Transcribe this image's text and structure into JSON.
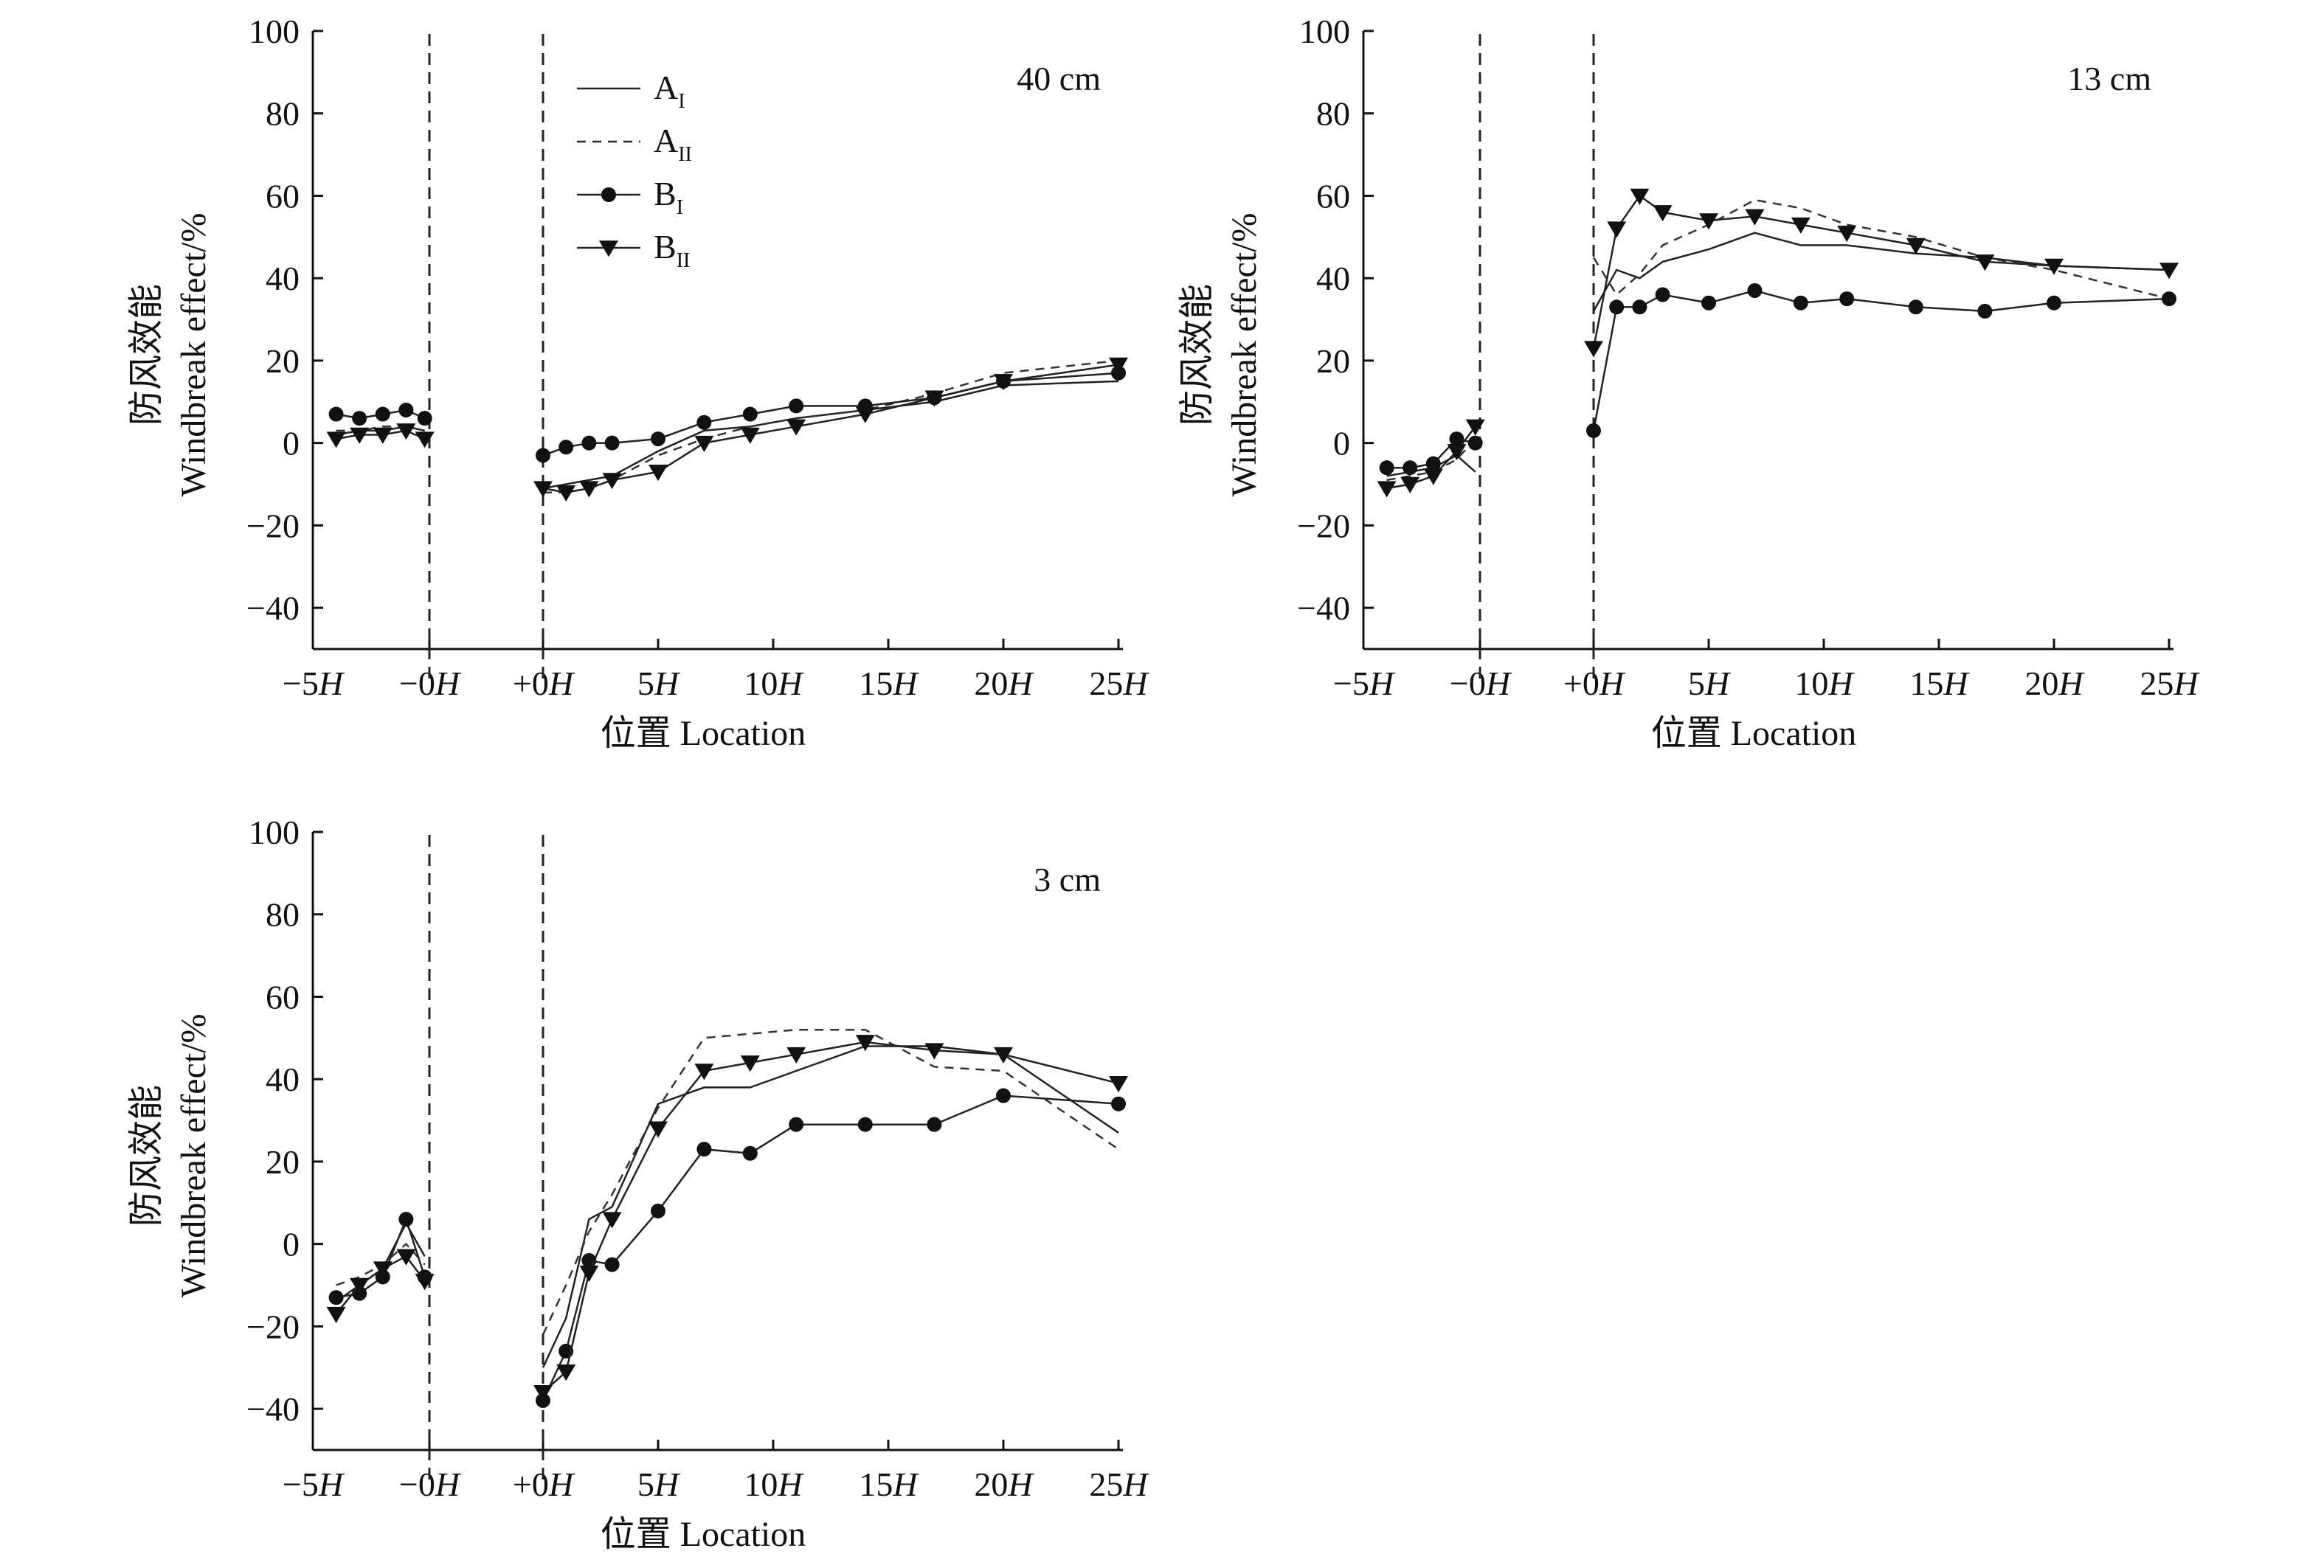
{
  "chart_data": [
    {
      "type": "line",
      "title": "40 cm",
      "xlabel": "位置 Location",
      "ylabel_cn": "防风效能",
      "ylabel_en": "Windbreak effect/%",
      "xticks": [
        "−5",
        "−0",
        "+0",
        "5",
        "10",
        "15",
        "20",
        "25"
      ],
      "xtick_suffix": "H",
      "ylim": [
        -50,
        100
      ],
      "yticks": [
        "100",
        "80",
        "60",
        "40",
        "20",
        "0",
        "−20",
        "−40"
      ],
      "legend": {
        "entries": [
          {
            "base": "A",
            "sub": "I"
          },
          {
            "base": "A",
            "sub": "II"
          },
          {
            "base": "B",
            "sub": "I"
          },
          {
            "base": "B",
            "sub": "II"
          }
        ]
      },
      "series": [
        {
          "name": "AI",
          "style": "solid",
          "marker": "none",
          "windward": {
            "x": [
              -4,
              -3,
              -2,
              -1,
              -0.2
            ],
            "y": [
              2,
              3,
              3,
              4,
              3
            ]
          },
          "leeward": {
            "x": [
              0,
              1,
              2,
              3,
              5,
              7,
              9,
              11,
              14,
              17,
              20,
              25
            ],
            "y": [
              -11,
              -10,
              -9,
              -8,
              -2,
              3,
              4,
              6,
              8,
              10,
              14,
              15
            ]
          }
        },
        {
          "name": "AII",
          "style": "dashed",
          "marker": "none",
          "windward": {
            "x": [
              -4,
              -3,
              -2,
              -1,
              -0.2
            ],
            "y": [
              3,
              3,
              4,
              4,
              3
            ]
          },
          "leeward": {
            "x": [
              0,
              1,
              2,
              3,
              5,
              7,
              9,
              11,
              14,
              17,
              20,
              25
            ],
            "y": [
              -12,
              -12,
              -11,
              -9,
              -3,
              1,
              4,
              6,
              8,
              12,
              17,
              20
            ]
          }
        },
        {
          "name": "BI",
          "style": "solid",
          "marker": "circle",
          "windward": {
            "x": [
              -4,
              -3,
              -2,
              -1,
              -0.2
            ],
            "y": [
              7,
              6,
              7,
              8,
              6
            ]
          },
          "leeward": {
            "x": [
              0,
              1,
              2,
              3,
              5,
              7,
              9,
              11,
              14,
              17,
              20,
              25
            ],
            "y": [
              -3,
              -1,
              0,
              0,
              1,
              5,
              7,
              9,
              9,
              11,
              15,
              17
            ]
          }
        },
        {
          "name": "BII",
          "style": "solid",
          "marker": "triangle-down",
          "windward": {
            "x": [
              -4,
              -3,
              -2,
              -1,
              -0.2
            ],
            "y": [
              1,
              2,
              2,
              3,
              1
            ]
          },
          "leeward": {
            "x": [
              0,
              1,
              2,
              3,
              5,
              7,
              9,
              11,
              14,
              17,
              20,
              25
            ],
            "y": [
              -11,
              -12,
              -11,
              -9,
              -7,
              0,
              2,
              4,
              7,
              11,
              15,
              19
            ]
          }
        }
      ]
    },
    {
      "type": "line",
      "title": "13 cm",
      "xlabel": "位置 Location",
      "ylabel_cn": "防风效能",
      "ylabel_en": "Windbreak effect/%",
      "xticks": [
        "−5",
        "−0",
        "+0",
        "5",
        "10",
        "15",
        "20",
        "25"
      ],
      "xtick_suffix": "H",
      "ylim": [
        -50,
        100
      ],
      "yticks": [
        "100",
        "80",
        "60",
        "40",
        "20",
        "0",
        "−20",
        "−40"
      ],
      "series": [
        {
          "name": "AI",
          "style": "solid",
          "marker": "none",
          "windward": {
            "x": [
              -4,
              -3,
              -2,
              -1,
              -0.2
            ],
            "y": [
              -8,
              -7,
              -6,
              -3,
              -7
            ]
          },
          "leeward": {
            "x": [
              0,
              1,
              2,
              3,
              5,
              7,
              9,
              11,
              14,
              17,
              20,
              25
            ],
            "y": [
              32,
              42,
              40,
              44,
              47,
              51,
              48,
              48,
              46,
              45,
              43,
              42
            ]
          }
        },
        {
          "name": "AII",
          "style": "dashed",
          "marker": "none",
          "windward": {
            "x": [
              -4,
              -3,
              -2,
              -1,
              -0.2
            ],
            "y": [
              -9,
              -8,
              -7,
              -4,
              1
            ]
          },
          "leeward": {
            "x": [
              0,
              1,
              2,
              3,
              5,
              7,
              9,
              11,
              14,
              17,
              20,
              25
            ],
            "y": [
              45,
              36,
              41,
              48,
              53,
              59,
              57,
              53,
              50,
              45,
              42,
              35
            ]
          }
        },
        {
          "name": "BI",
          "style": "solid",
          "marker": "circle",
          "windward": {
            "x": [
              -4,
              -3,
              -2,
              -1,
              -0.2
            ],
            "y": [
              -6,
              -6,
              -5,
              1,
              0
            ]
          },
          "leeward": {
            "x": [
              0,
              1,
              2,
              3,
              5,
              7,
              9,
              11,
              14,
              17,
              20,
              25
            ],
            "y": [
              3,
              33,
              33,
              36,
              34,
              37,
              34,
              35,
              33,
              32,
              34,
              35
            ]
          }
        },
        {
          "name": "BII",
          "style": "solid",
          "marker": "triangle-down",
          "windward": {
            "x": [
              -4,
              -3,
              -2,
              -1,
              -0.2
            ],
            "y": [
              -11,
              -10,
              -8,
              -2,
              4
            ]
          },
          "leeward": {
            "x": [
              0,
              1,
              2,
              3,
              5,
              7,
              9,
              11,
              14,
              17,
              20,
              25
            ],
            "y": [
              23,
              52,
              60,
              56,
              54,
              55,
              53,
              51,
              48,
              44,
              43,
              42
            ]
          }
        }
      ]
    },
    {
      "type": "line",
      "title": "3 cm",
      "xlabel": "位置 Location",
      "ylabel_cn": "防风效能",
      "ylabel_en": "Windbreak effect/%",
      "xticks": [
        "−5",
        "−0",
        "+0",
        "5",
        "10",
        "15",
        "20",
        "25"
      ],
      "xtick_suffix": "H",
      "ylim": [
        -50,
        100
      ],
      "yticks": [
        "100",
        "80",
        "60",
        "40",
        "20",
        "0",
        "−20",
        "−40"
      ],
      "series": [
        {
          "name": "AI",
          "style": "solid",
          "marker": "none",
          "windward": {
            "x": [
              -4,
              -3,
              -2,
              -1,
              -0.2
            ],
            "y": [
              -14,
              -10,
              -6,
              5,
              -3
            ]
          },
          "leeward": {
            "x": [
              0,
              1,
              2,
              3,
              5,
              7,
              9,
              11,
              14,
              17,
              20,
              25
            ],
            "y": [
              -30,
              -18,
              6,
              9,
              34,
              38,
              38,
              42,
              48,
              48,
              46,
              27
            ]
          }
        },
        {
          "name": "AII",
          "style": "dashed",
          "marker": "none",
          "windward": {
            "x": [
              -4,
              -3,
              -2,
              -1,
              -0.2
            ],
            "y": [
              -10,
              -8,
              -5,
              0,
              -5
            ]
          },
          "leeward": {
            "x": [
              0,
              1,
              2,
              3,
              5,
              7,
              9,
              11,
              14,
              17,
              20,
              25
            ],
            "y": [
              -22,
              -10,
              3,
              12,
              33,
              50,
              51,
              52,
              52,
              43,
              42,
              23
            ]
          }
        },
        {
          "name": "BI",
          "style": "solid",
          "marker": "circle",
          "windward": {
            "x": [
              -4,
              -3,
              -2,
              -1,
              -0.2
            ],
            "y": [
              -13,
              -12,
              -8,
              6,
              -8
            ]
          },
          "leeward": {
            "x": [
              0,
              1,
              2,
              3,
              5,
              7,
              9,
              11,
              14,
              17,
              20,
              25
            ],
            "y": [
              -38,
              -26,
              -4,
              -5,
              8,
              23,
              22,
              29,
              29,
              29,
              36,
              34
            ]
          }
        },
        {
          "name": "BII",
          "style": "solid",
          "marker": "triangle-down",
          "windward": {
            "x": [
              -4,
              -3,
              -2,
              -1,
              -0.2
            ],
            "y": [
              -17,
              -10,
              -6,
              -3,
              -9
            ]
          },
          "leeward": {
            "x": [
              0,
              1,
              2,
              3,
              5,
              7,
              9,
              11,
              14,
              17,
              20,
              25
            ],
            "y": [
              -36,
              -31,
              -7,
              6,
              28,
              42,
              44,
              46,
              49,
              47,
              46,
              39
            ]
          }
        }
      ]
    }
  ]
}
